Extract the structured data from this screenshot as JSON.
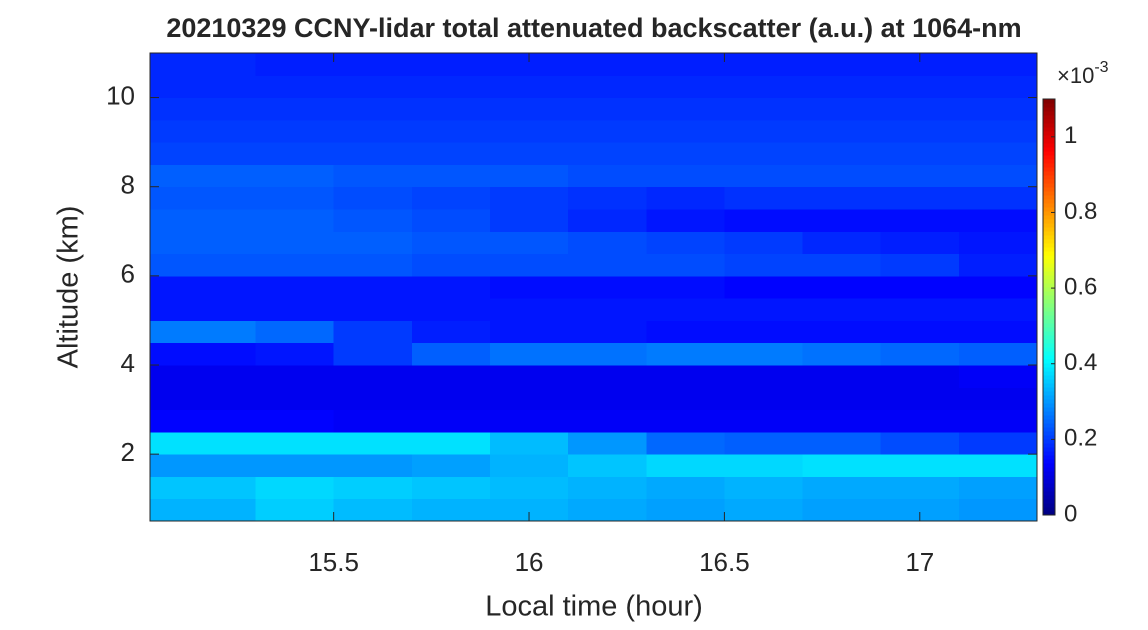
{
  "chart_data": {
    "type": "heatmap",
    "title": "20210329 CCNY-lidar total attenuated backscatter (a.u.) at 1064-nm",
    "xlabel": "Local time (hour)",
    "ylabel": "Altitude (km)",
    "colormap": "jet",
    "colorbar_multiplier": "×10",
    "colorbar_exponent": "-3",
    "xlim": [
      15.03,
      17.3
    ],
    "xticks": [
      15.5,
      16,
      16.5,
      17
    ],
    "ylim": [
      0.5,
      11
    ],
    "yticks": [
      2,
      4,
      6,
      8,
      10
    ],
    "clim": [
      0,
      1.1
    ],
    "cticks": [
      0,
      0.2,
      0.4,
      0.6,
      0.8,
      1
    ],
    "x": [
      15.2,
      15.4,
      15.6,
      15.8,
      16.0,
      16.2,
      16.4,
      16.6,
      16.8,
      17.0,
      17.2
    ],
    "y": [
      0.75,
      1.25,
      1.75,
      2.25,
      2.75,
      3.25,
      3.75,
      4.25,
      4.75,
      5.25,
      5.75,
      6.25,
      6.75,
      7.25,
      7.75,
      8.25,
      8.75,
      9.25,
      9.75,
      10.25,
      10.75
    ],
    "z": [
      [
        0.33,
        0.36,
        0.34,
        0.33,
        0.33,
        0.32,
        0.31,
        0.32,
        0.31,
        0.31,
        0.3
      ],
      [
        0.35,
        0.37,
        0.36,
        0.35,
        0.34,
        0.33,
        0.32,
        0.33,
        0.32,
        0.32,
        0.31
      ],
      [
        0.3,
        0.3,
        0.3,
        0.31,
        0.33,
        0.35,
        0.37,
        0.37,
        0.38,
        0.38,
        0.38
      ],
      [
        0.38,
        0.38,
        0.38,
        0.38,
        0.34,
        0.3,
        0.25,
        0.24,
        0.24,
        0.22,
        0.2
      ],
      [
        0.14,
        0.14,
        0.13,
        0.13,
        0.13,
        0.13,
        0.13,
        0.13,
        0.13,
        0.13,
        0.13
      ],
      [
        0.12,
        0.12,
        0.12,
        0.12,
        0.12,
        0.12,
        0.12,
        0.12,
        0.12,
        0.12,
        0.12
      ],
      [
        0.12,
        0.12,
        0.12,
        0.12,
        0.12,
        0.12,
        0.12,
        0.12,
        0.12,
        0.12,
        0.13
      ],
      [
        0.15,
        0.16,
        0.2,
        0.24,
        0.26,
        0.26,
        0.27,
        0.27,
        0.26,
        0.25,
        0.24
      ],
      [
        0.27,
        0.25,
        0.2,
        0.17,
        0.16,
        0.16,
        0.15,
        0.15,
        0.15,
        0.15,
        0.15
      ],
      [
        0.16,
        0.16,
        0.16,
        0.16,
        0.16,
        0.16,
        0.16,
        0.16,
        0.16,
        0.16,
        0.16
      ],
      [
        0.16,
        0.16,
        0.16,
        0.16,
        0.15,
        0.15,
        0.15,
        0.14,
        0.14,
        0.14,
        0.14
      ],
      [
        0.23,
        0.23,
        0.23,
        0.22,
        0.22,
        0.22,
        0.22,
        0.21,
        0.21,
        0.2,
        0.17
      ],
      [
        0.24,
        0.24,
        0.24,
        0.23,
        0.23,
        0.22,
        0.21,
        0.2,
        0.18,
        0.17,
        0.16
      ],
      [
        0.24,
        0.24,
        0.23,
        0.22,
        0.2,
        0.18,
        0.16,
        0.15,
        0.15,
        0.15,
        0.15
      ],
      [
        0.23,
        0.23,
        0.22,
        0.21,
        0.2,
        0.19,
        0.18,
        0.19,
        0.19,
        0.19,
        0.19
      ],
      [
        0.24,
        0.24,
        0.23,
        0.23,
        0.23,
        0.22,
        0.22,
        0.22,
        0.22,
        0.22,
        0.22
      ],
      [
        0.21,
        0.21,
        0.21,
        0.21,
        0.21,
        0.21,
        0.21,
        0.21,
        0.21,
        0.21,
        0.21
      ],
      [
        0.2,
        0.2,
        0.2,
        0.2,
        0.2,
        0.2,
        0.2,
        0.2,
        0.2,
        0.2,
        0.2
      ],
      [
        0.19,
        0.19,
        0.19,
        0.19,
        0.19,
        0.19,
        0.19,
        0.19,
        0.19,
        0.19,
        0.19
      ],
      [
        0.18,
        0.18,
        0.18,
        0.18,
        0.18,
        0.18,
        0.18,
        0.18,
        0.18,
        0.18,
        0.18
      ],
      [
        0.18,
        0.17,
        0.17,
        0.17,
        0.17,
        0.17,
        0.17,
        0.17,
        0.17,
        0.17,
        0.17
      ]
    ]
  }
}
